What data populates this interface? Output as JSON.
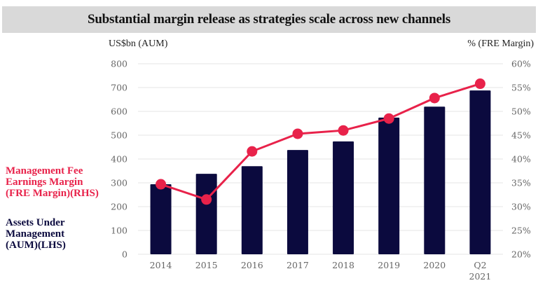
{
  "chart_data": {
    "type": "bar+line",
    "title": "Substantial margin release as strategies scale across new channels",
    "categories": [
      "2014",
      "2015",
      "2016",
      "2017",
      "2018",
      "2019",
      "2020",
      "Q2\n2021"
    ],
    "category_labels": [
      [
        "2014"
      ],
      [
        "2015"
      ],
      [
        "2016"
      ],
      [
        "2017"
      ],
      [
        "2018"
      ],
      [
        "2019"
      ],
      [
        "2020"
      ],
      [
        "Q2",
        "2021"
      ]
    ],
    "series": [
      {
        "name": "Assets Under Management (AUM)(LHS)",
        "type": "bar",
        "axis": "left",
        "color": "#0b0a3e",
        "values": [
          294,
          338,
          370,
          438,
          474,
          574,
          620,
          688
        ]
      },
      {
        "name": "Management Fee Earnings Margin (FRE Margin)(RHS)",
        "type": "line",
        "axis": "right",
        "color": "#e8224a",
        "values": [
          34.7,
          31.5,
          41.6,
          45.3,
          46.0,
          48.5,
          52.8,
          55.8
        ]
      }
    ],
    "ylabel_left": "US$bn (AUM)",
    "ylabel_right": "% (FRE Margin)",
    "ylim_left": [
      0,
      800
    ],
    "ylim_right": [
      20,
      60
    ],
    "yticks_left": [
      "0",
      "100",
      "200",
      "300",
      "400",
      "500",
      "600",
      "700",
      "800"
    ],
    "yticks_right": [
      "20%",
      "25%",
      "30%",
      "35%",
      "40%",
      "45%",
      "50%",
      "55%",
      "60%"
    ],
    "grid": true,
    "legend": {
      "placement": "left",
      "entries": [
        {
          "label": "Management Fee Earnings Margin (FRE Margin)(RHS)",
          "lines": [
            "Management Fee",
            "Earnings Margin",
            "(FRE Margin)(RHS)"
          ],
          "color": "#e8224a"
        },
        {
          "label": "Assets Under Management (AUM)(LHS)",
          "lines": [
            "Assets Under",
            "Management",
            "(AUM)(LHS)"
          ],
          "color": "#0b0a3e"
        }
      ]
    }
  }
}
